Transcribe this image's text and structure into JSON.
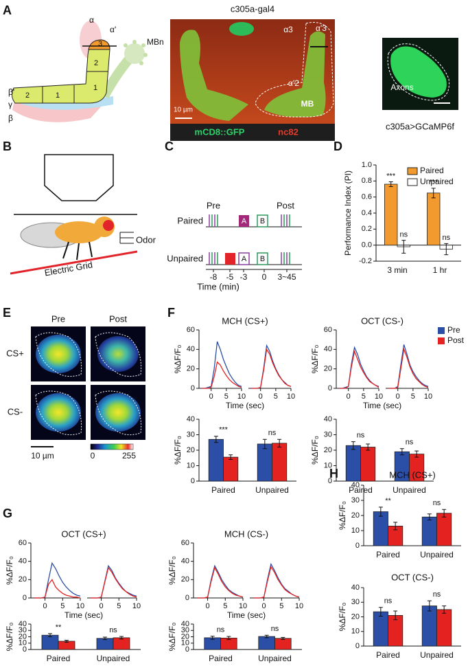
{
  "panel_labels": [
    "A",
    "B",
    "C",
    "D",
    "E",
    "F",
    "G",
    "H"
  ],
  "panel_a": {
    "title": "c305a-gal4",
    "lobe_labels": [
      "α",
      "α'",
      "MBn",
      "β'",
      "γ",
      "β"
    ],
    "compartment_labels": [
      "2",
      "1",
      "1",
      "2",
      "3"
    ],
    "image_labels": [
      "α3",
      "α'3",
      "α'2",
      "MB"
    ],
    "scale_bar": "10 µm",
    "stains": [
      "mCD8::GFP",
      "nc82"
    ],
    "inset_label": "Axons",
    "inset_caption": "c305a>GCaMP6f"
  },
  "panel_b": {
    "labels": [
      "Odor",
      "Electric Grid"
    ]
  },
  "panel_c": {
    "phases": [
      "Pre",
      "Post"
    ],
    "conditions": [
      "Paired",
      "Unpaired"
    ],
    "odors": [
      "A",
      "B"
    ],
    "time_ticks": [
      "-8",
      "-5",
      "-3",
      "0",
      "3~45"
    ],
    "time_label": "Time (min)"
  },
  "panel_e": {
    "columns": [
      "Pre",
      "Post"
    ],
    "rows": [
      "CS+",
      "CS-"
    ],
    "scale_bar": "10 µm",
    "colorbar_ticks": [
      "0",
      "255"
    ]
  },
  "condition_legend": [
    {
      "name": "Pre",
      "color": "#2b4ea6"
    },
    {
      "name": "Post",
      "color": "#e42320"
    }
  ],
  "chart_data": [
    {
      "type": "bar",
      "ylabel": "Performance Index (PI)",
      "categories": [
        "3 min",
        "1 hr"
      ],
      "series": [
        {
          "name": "Paired",
          "color": "#f39a2e",
          "values": [
            0.76,
            0.65
          ],
          "errors": [
            0.03,
            0.06
          ],
          "annotations": [
            "***",
            "***"
          ]
        },
        {
          "name": "Unpaired",
          "color": "#ffffff",
          "values": [
            -0.02,
            -0.05
          ],
          "errors": [
            0.08,
            0.07
          ],
          "annotations": [
            "ns",
            "ns"
          ]
        }
      ],
      "ylim": [
        -0.2,
        1.0
      ],
      "yticks": [
        -0.2,
        {
          "value": 0,
          "label": "0.0"
        },
        0.2,
        0.4,
        0.6,
        0.8,
        {
          "value": 1,
          "label": "1.0"
        }
      ],
      "legend": "upper right"
    },
    {
      "type": "line",
      "title": "MCH (CS+)",
      "xlabel": "Time (sec)",
      "ylabel": "%ΔF/F₀",
      "x": [
        -3,
        -2,
        -1,
        0,
        1,
        2,
        3,
        4,
        5,
        6,
        7,
        8,
        9,
        10
      ],
      "xlim": [
        -4,
        10
      ],
      "xticks": [
        0,
        5,
        10
      ],
      "ylim": [
        0,
        60
      ],
      "yticks": [
        0,
        20,
        40,
        60
      ],
      "panels": [
        {
          "series": [
            {
              "values": [
                0,
                0,
                1,
                2,
                20,
                48,
                40,
                30,
                22,
                15,
                10,
                6,
                3,
                2
              ]
            },
            {
              "values": [
                0,
                0,
                0,
                1,
                12,
                27,
                24,
                18,
                13,
                9,
                6,
                4,
                2,
                1
              ]
            }
          ]
        },
        {
          "series": [
            {
              "values": [
                0,
                0,
                0,
                1,
                20,
                44,
                38,
                28,
                20,
                14,
                9,
                6,
                3,
                2
              ]
            },
            {
              "values": [
                0,
                0,
                0,
                1,
                18,
                40,
                35,
                26,
                19,
                13,
                9,
                5,
                3,
                2
              ]
            }
          ]
        }
      ]
    },
    {
      "type": "bar",
      "ylabel": "%ΔF/F₀",
      "categories": [
        "Paired",
        "Unpaired"
      ],
      "ylim": [
        0,
        40
      ],
      "yticks": [
        0,
        10,
        20,
        30,
        40
      ],
      "series": [
        {
          "values": [
            27,
            24
          ],
          "errors": [
            2,
            3
          ]
        },
        {
          "values": [
            15.5,
            24.5
          ],
          "errors": [
            1.5,
            2.5
          ]
        }
      ],
      "annotations": [
        "***",
        "ns"
      ]
    },
    {
      "type": "line",
      "title": "OCT (CS-)",
      "xlabel": "Time (sec)",
      "ylabel": "%ΔF/F₀",
      "x": [
        -3,
        -2,
        -1,
        0,
        1,
        2,
        3,
        4,
        5,
        6,
        7,
        8,
        9,
        10
      ],
      "xlim": [
        -4,
        10
      ],
      "xticks": [
        0,
        5,
        10
      ],
      "ylim": [
        0,
        60
      ],
      "yticks": [
        0,
        20,
        40,
        60
      ],
      "panels": [
        {
          "series": [
            {
              "values": [
                0,
                0,
                1,
                2,
                25,
                42,
                35,
                25,
                18,
                12,
                8,
                5,
                3,
                2
              ]
            },
            {
              "values": [
                0,
                0,
                0,
                2,
                22,
                38,
                30,
                22,
                16,
                11,
                7,
                5,
                3,
                1
              ]
            }
          ]
        },
        {
          "series": [
            {
              "values": [
                0,
                0,
                0,
                2,
                24,
                45,
                35,
                24,
                17,
                12,
                8,
                5,
                3,
                2
              ]
            },
            {
              "values": [
                0,
                0,
                0,
                1,
                20,
                40,
                32,
                22,
                15,
                10,
                7,
                4,
                2,
                1
              ]
            }
          ]
        }
      ]
    },
    {
      "type": "bar",
      "ylabel": "%ΔF/F₀",
      "categories": [
        "Paired",
        "Unpaired"
      ],
      "ylim": [
        0,
        40
      ],
      "yticks": [
        0,
        10,
        20,
        30,
        40
      ],
      "series": [
        {
          "values": [
            23,
            19
          ],
          "errors": [
            2.5,
            2
          ]
        },
        {
          "values": [
            22,
            17.5
          ],
          "errors": [
            2,
            2
          ]
        }
      ],
      "annotations": [
        "ns",
        "ns"
      ]
    },
    {
      "type": "line",
      "title": "OCT (CS+)",
      "xlabel": "Time (sec)",
      "ylabel": "%ΔF/F₀",
      "x": [
        -3,
        -2,
        -1,
        0,
        1,
        2,
        3,
        4,
        5,
        6,
        7,
        8,
        9,
        10
      ],
      "xlim": [
        -4,
        10
      ],
      "xticks": [
        0,
        5,
        10
      ],
      "ylim": [
        0,
        60
      ],
      "yticks": [
        0,
        20,
        40,
        60
      ],
      "panels": [
        {
          "series": [
            {
              "values": [
                0,
                0,
                0,
                1,
                20,
                38,
                32,
                24,
                17,
                12,
                8,
                5,
                3,
                2
              ]
            },
            {
              "values": [
                0,
                0,
                0,
                1,
                15,
                20,
                12,
                8,
                5,
                3,
                2,
                1,
                1,
                0
              ]
            }
          ]
        },
        {
          "series": [
            {
              "values": [
                0,
                0,
                0,
                1,
                18,
                35,
                30,
                22,
                16,
                11,
                7,
                5,
                3,
                2
              ]
            },
            {
              "values": [
                0,
                0,
                0,
                1,
                17,
                33,
                28,
                21,
                15,
                10,
                7,
                4,
                2,
                1
              ]
            }
          ]
        }
      ]
    },
    {
      "type": "bar",
      "ylabel": "%ΔF/F₀",
      "categories": [
        "Paired",
        "Unpaired"
      ],
      "ylim": [
        0,
        40
      ],
      "yticks": [
        0,
        10,
        20,
        30,
        40
      ],
      "series": [
        {
          "values": [
            22.5,
            17.5
          ],
          "errors": [
            2.5,
            2
          ]
        },
        {
          "values": [
            13,
            18.5
          ],
          "errors": [
            1.5,
            2
          ]
        }
      ],
      "annotations": [
        "**",
        "ns"
      ]
    },
    {
      "type": "line",
      "title": "MCH (CS-)",
      "xlabel": "Time (sec)",
      "ylabel": "%ΔF/F₀",
      "x": [
        -3,
        -2,
        -1,
        0,
        1,
        2,
        3,
        4,
        5,
        6,
        7,
        8,
        9,
        10
      ],
      "xlim": [
        -4,
        10
      ],
      "xticks": [
        0,
        5,
        10
      ],
      "ylim": [
        0,
        60
      ],
      "yticks": [
        0,
        20,
        40,
        60
      ],
      "panels": [
        {
          "series": [
            {
              "values": [
                0,
                0,
                0,
                1,
                20,
                35,
                28,
                20,
                14,
                9,
                6,
                4,
                2,
                1
              ]
            },
            {
              "values": [
                0,
                0,
                0,
                1,
                18,
                33,
                26,
                18,
                12,
                8,
                5,
                3,
                2,
                1
              ]
            }
          ]
        },
        {
          "series": [
            {
              "values": [
                0,
                0,
                0,
                1,
                20,
                37,
                30,
                22,
                15,
                10,
                7,
                4,
                2,
                1
              ]
            },
            {
              "values": [
                0,
                0,
                0,
                1,
                18,
                34,
                28,
                20,
                14,
                9,
                6,
                4,
                2,
                1
              ]
            }
          ]
        }
      ]
    },
    {
      "type": "bar",
      "ylabel": "%ΔF/F₀",
      "categories": [
        "Paired",
        "Unpaired"
      ],
      "ylim": [
        0,
        40
      ],
      "yticks": [
        0,
        10,
        20,
        30,
        40
      ],
      "series": [
        {
          "values": [
            18.5,
            20.5
          ],
          "errors": [
            2.5,
            2
          ]
        },
        {
          "values": [
            18,
            17.5
          ],
          "errors": [
            2.5,
            1.5
          ]
        }
      ],
      "annotations": [
        "ns",
        "ns"
      ]
    },
    {
      "type": "bar",
      "title": "MCH (CS+)",
      "ylabel": "%ΔF/F₀",
      "categories": [
        "Paired",
        "Unpaired"
      ],
      "ylim": [
        0,
        40
      ],
      "yticks": [
        0,
        10,
        20,
        30,
        40
      ],
      "series": [
        {
          "values": [
            22.5,
            19
          ],
          "errors": [
            3,
            2
          ]
        },
        {
          "values": [
            13,
            21.5
          ],
          "errors": [
            2.5,
            2.5
          ]
        }
      ],
      "annotations": [
        "**",
        "ns"
      ]
    },
    {
      "type": "bar",
      "title": "OCT (CS-)",
      "ylabel": "%ΔF/F₀",
      "categories": [
        "Paired",
        "Unpaired"
      ],
      "ylim": [
        0,
        40
      ],
      "yticks": [
        0,
        10,
        20,
        30,
        40
      ],
      "series": [
        {
          "values": [
            23.5,
            27.5
          ],
          "errors": [
            3,
            3.5
          ]
        },
        {
          "values": [
            21,
            25
          ],
          "errors": [
            3,
            2.5
          ]
        }
      ],
      "annotations": [
        "ns",
        "ns"
      ]
    }
  ]
}
